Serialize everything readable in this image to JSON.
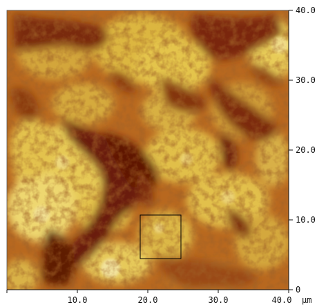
{
  "image": {
    "description_colors": {
      "dark": "#6b1c08",
      "mid": "#b5641d",
      "light": "#e5c750",
      "highlight": "#f3e7a0",
      "axis": "#111111",
      "selection_box": "#000000"
    }
  },
  "axes": {
    "x_ticks": [
      "10.0",
      "20.0",
      "30.0",
      "40.0"
    ],
    "x_unit": "µm",
    "y_ticks": [
      "40.0",
      "30.0",
      "20.0",
      "10.0",
      "0"
    ]
  },
  "selection": {
    "x_range_um": [
      19.5,
      25.5
    ],
    "y_range_um": [
      4.5,
      10.5
    ]
  }
}
